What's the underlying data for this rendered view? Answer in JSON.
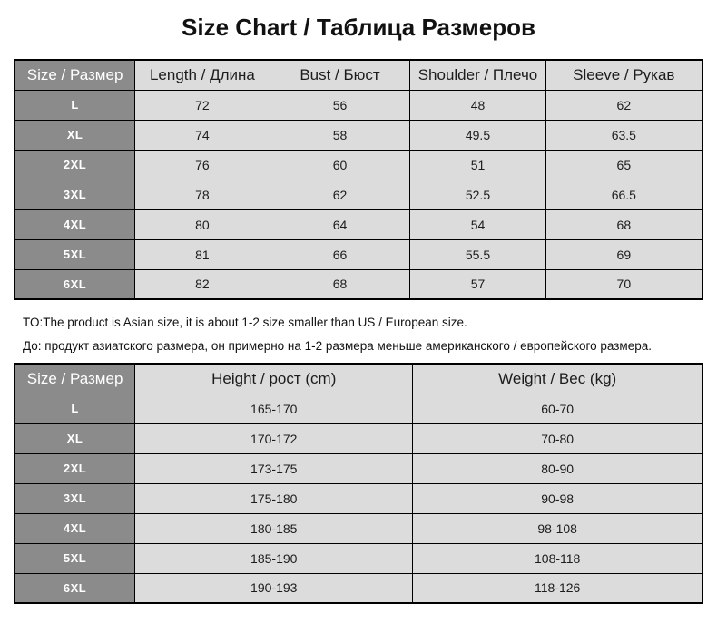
{
  "title": "Size Chart / Таблица Размеров",
  "colors": {
    "size_column_background": "#8b8b8b",
    "cell_background": "#dcdcdc",
    "border": "#000000",
    "text_dark": "#1c1c1c",
    "text_light": "#ffffff",
    "page_background": "#ffffff"
  },
  "garment_table": {
    "headers": [
      "Size / Размер",
      "Length / Длина",
      "Bust / Бюст",
      "Shoulder / Плечо",
      "Sleeve / Рукав"
    ],
    "rows": [
      [
        "L",
        "72",
        "56",
        "48",
        "62"
      ],
      [
        "XL",
        "74",
        "58",
        "49.5",
        "63.5"
      ],
      [
        "2XL",
        "76",
        "60",
        "51",
        "65"
      ],
      [
        "3XL",
        "78",
        "62",
        "52.5",
        "66.5"
      ],
      [
        "4XL",
        "80",
        "64",
        "54",
        "68"
      ],
      [
        "5XL",
        "81",
        "66",
        "55.5",
        "69"
      ],
      [
        "6XL",
        "82",
        "68",
        "57",
        "70"
      ]
    ]
  },
  "notes": {
    "english": "TO:The product is Asian size, it is about 1-2 size smaller than US / European size.",
    "russian": "До: продукт азиатского размера, он примерно на 1-2 размера меньше американского / европейского размера."
  },
  "body_table": {
    "headers": [
      "Size / Размер",
      "Height / рост (cm)",
      "Weight / Вес (kg)"
    ],
    "rows": [
      [
        "L",
        "165-170",
        "60-70"
      ],
      [
        "XL",
        "170-172",
        "70-80"
      ],
      [
        "2XL",
        "173-175",
        "80-90"
      ],
      [
        "3XL",
        "175-180",
        "90-98"
      ],
      [
        "4XL",
        "180-185",
        "98-108"
      ],
      [
        "5XL",
        "185-190",
        "108-118"
      ],
      [
        "6XL",
        "190-193",
        "118-126"
      ]
    ]
  }
}
